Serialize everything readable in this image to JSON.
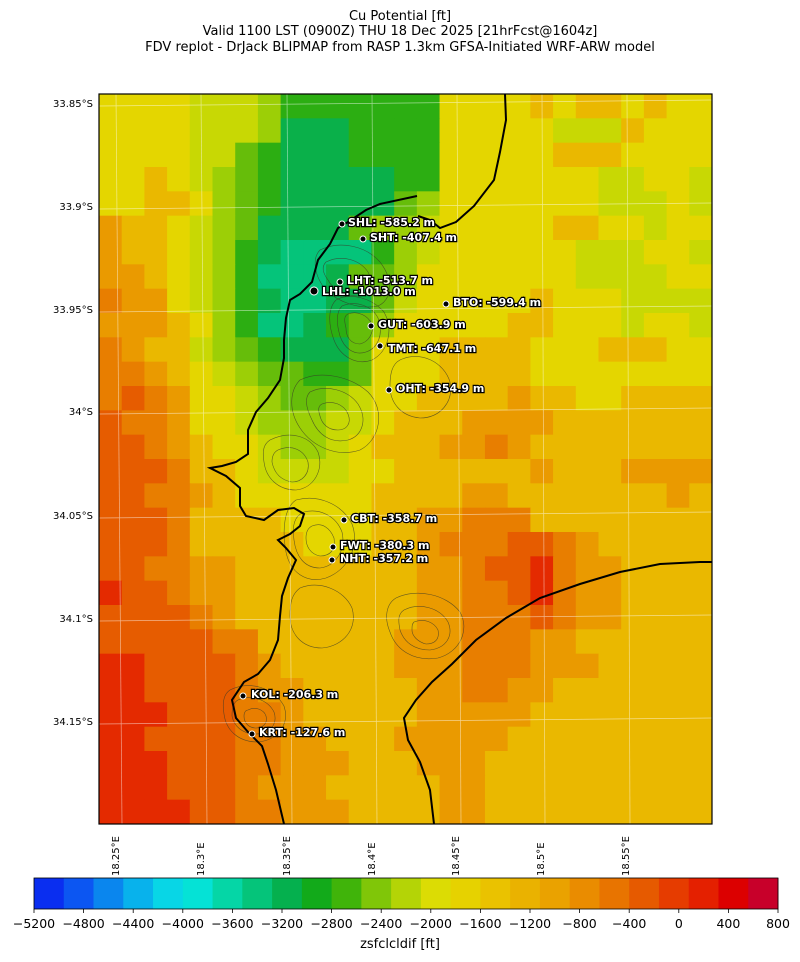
{
  "header": {
    "line1": "Cu Potential [ft]",
    "line2": "Valid 1100 LST (0900Z) THU 18 Dec 2025 [21hrFcst@1604z]",
    "line3": "FDV replot - DrJack BLIPMAP from RASP 1.3km GFSA-Initiated WRF-ARW model"
  },
  "axes": {
    "lat_labels": [
      "33.85°S",
      "33.9°S",
      "33.95°S",
      "34°S",
      "34.05°S",
      "34.1°S",
      "34.15°S"
    ],
    "lon_labels": [
      "18.25°E",
      "18.3°E",
      "18.35°E",
      "18.4°E",
      "18.45°E",
      "18.5°E",
      "18.55°E"
    ]
  },
  "stations": [
    {
      "label": "SHL: -585.2 m"
    },
    {
      "label": "SHT: -407.4 m"
    },
    {
      "label": "LHT: -513.7 m"
    },
    {
      "label": "LHL: -1013.0 m"
    },
    {
      "label": "BTO: -599.4 m"
    },
    {
      "label": "GUT: -603.9 m"
    },
    {
      "label": "TMT: -647.1 m"
    },
    {
      "label": "OHT: -354.9 m"
    },
    {
      "label": "CBT: -358.7 m"
    },
    {
      "label": "FWT: -380.3 m"
    },
    {
      "label": "NHT: -357.2 m"
    },
    {
      "label": "KOL: -206.3 m"
    },
    {
      "label": "KRT: -127.6 m"
    }
  ],
  "colorbar": {
    "title": "zsfclcldif [ft]",
    "ticks": [
      "−5200",
      "−4800",
      "−4400",
      "−4000",
      "−3600",
      "−3200",
      "−2800",
      "−2400",
      "−2000",
      "−1600",
      "−1200",
      "−800",
      "−400",
      "0",
      "400",
      "800"
    ],
    "colors": [
      "#0a2ef0",
      "#0c56f2",
      "#0a86ee",
      "#08b2ec",
      "#08d6e6",
      "#05e2d6",
      "#05d6a6",
      "#05c47a",
      "#05b04e",
      "#12aa1a",
      "#40b40a",
      "#80c608",
      "#b4d406",
      "#dcdc04",
      "#e6d200",
      "#eac200",
      "#eab200",
      "#eaa200",
      "#ea8c00",
      "#e87400",
      "#e65a00",
      "#e63c00",
      "#e42000",
      "#dc0000",
      "#c8002a"
    ]
  }
}
